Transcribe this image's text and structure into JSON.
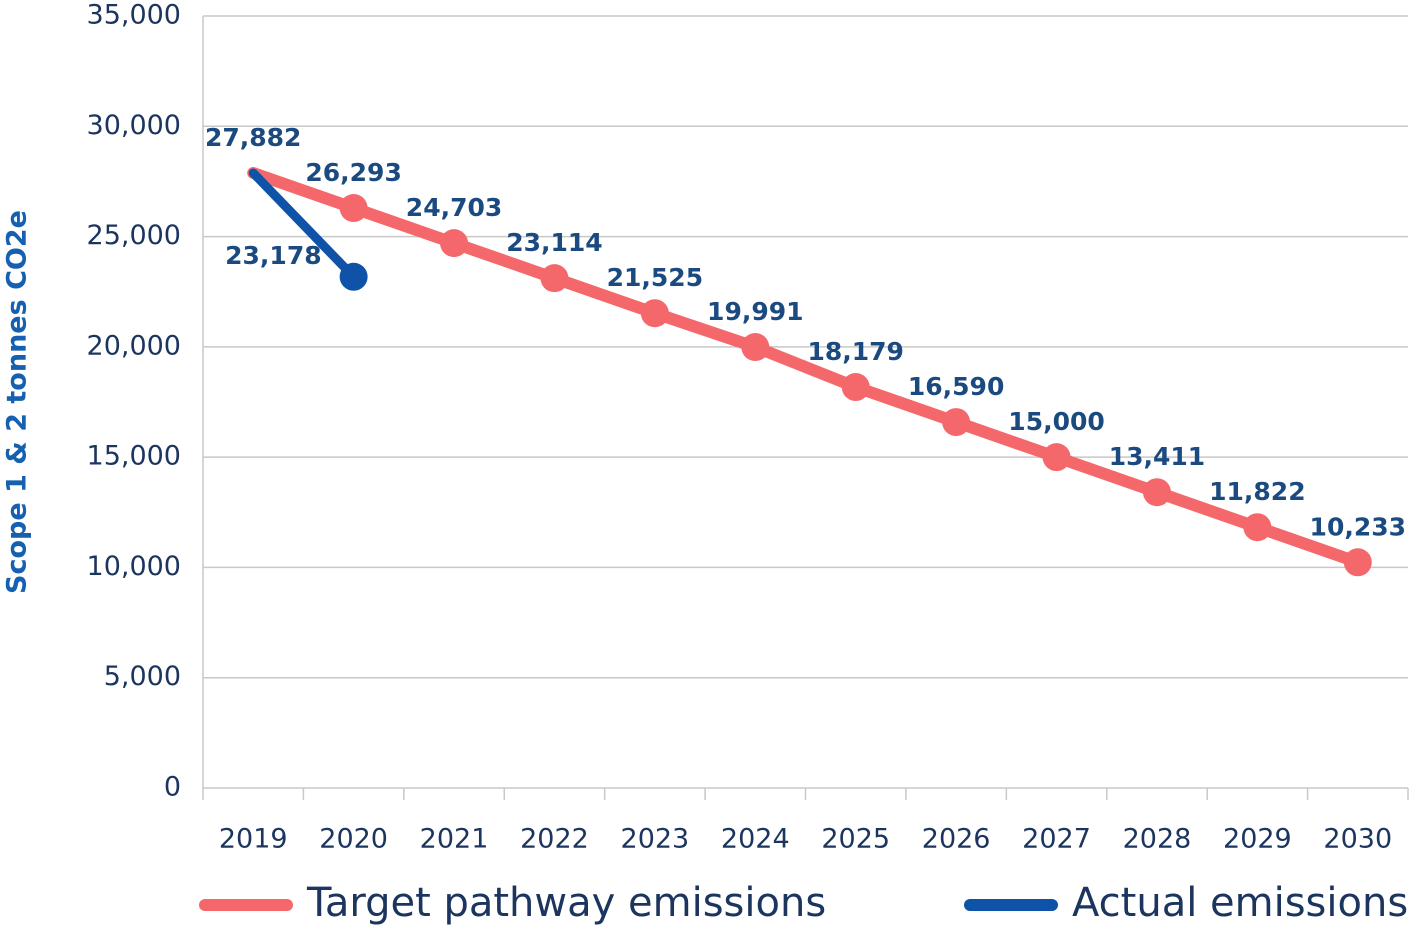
{
  "chart_data": {
    "type": "line",
    "y_label": "Scope 1 & 2 tonnes CO2e",
    "categories": [
      "2019",
      "2020",
      "2021",
      "2022",
      "2023",
      "2024",
      "2025",
      "2026",
      "2027",
      "2028",
      "2029",
      "2030"
    ],
    "series": [
      {
        "name": "Target pathway emissions",
        "color": "#f4686c",
        "values": [
          27882,
          26293,
          24703,
          23114,
          21525,
          19991,
          18179,
          16590,
          15000,
          13411,
          11822,
          10233
        ],
        "value_labels": [
          "27,882",
          "26,293",
          "24,703",
          "23,114",
          "21,525",
          "19,991",
          "18,179",
          "16,590",
          "15,000",
          "13,411",
          "11,822",
          "10,233"
        ]
      },
      {
        "name": "Actual emissions",
        "color": "#0e53a7",
        "values": [
          27882,
          23178,
          null,
          null,
          null,
          null,
          null,
          null,
          null,
          null,
          null,
          null
        ],
        "value_labels": [
          null,
          "23,178",
          null,
          null,
          null,
          null,
          null,
          null,
          null,
          null,
          null,
          null
        ]
      }
    ],
    "ylim": [
      0,
      35000
    ],
    "yticks": [
      0,
      {
        "value": 5000,
        "label": "5,000"
      },
      {
        "value": 10000,
        "label": "10,000"
      },
      {
        "value": 15000,
        "label": "15,000"
      },
      {
        "value": 20000,
        "label": "20,000"
      },
      {
        "value": 25000,
        "label": "25,000"
      },
      {
        "value": 30000,
        "label": "30,000"
      },
      {
        "value": 35000,
        "label": "35,000"
      }
    ],
    "grid": true,
    "legend": "bottom"
  }
}
